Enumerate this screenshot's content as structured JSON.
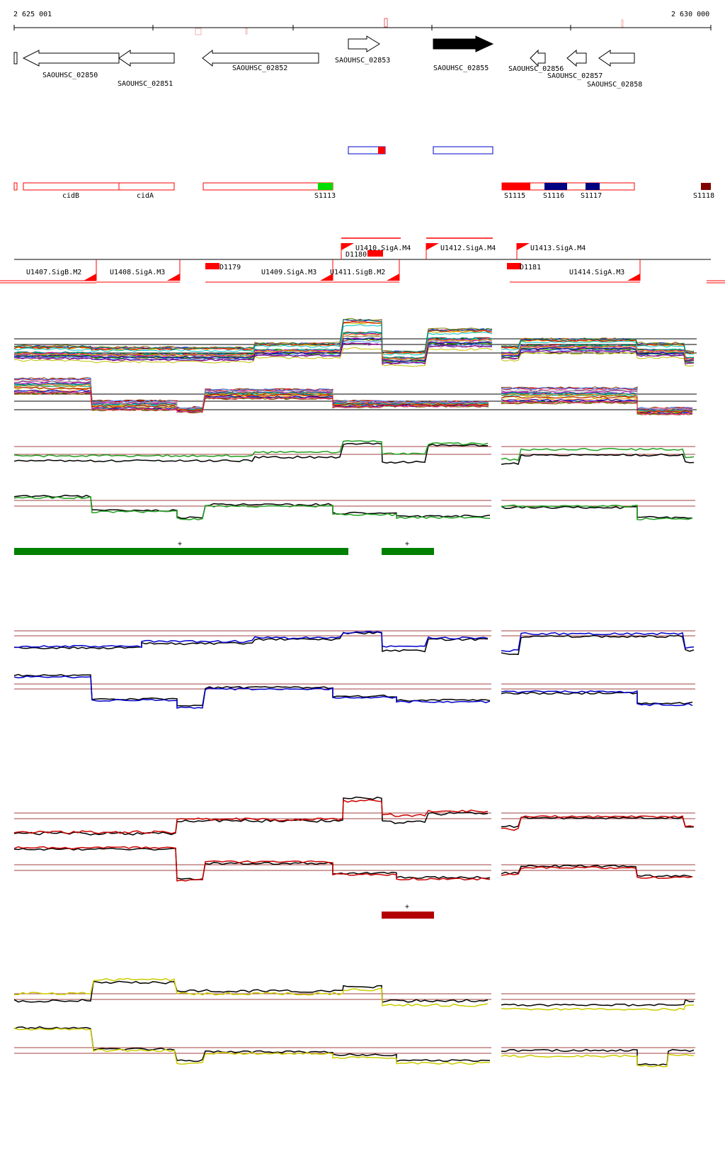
{
  "coords": {
    "start": "2 625 001",
    "end": "2 630 000"
  },
  "genes": [
    {
      "label": "SAOUHSC_02850",
      "strand": "-",
      "filled": false
    },
    {
      "label": "SAOUHSC_02851",
      "strand": "-",
      "filled": false
    },
    {
      "label": "SAOUHSC_02852",
      "strand": "-",
      "filled": false
    },
    {
      "label": "SAOUHSC_02853",
      "strand": "+",
      "filled": false
    },
    {
      "label": "SAOUHSC_02855",
      "strand": "+",
      "filled": true
    },
    {
      "label": "SAOUHSC_02856",
      "strand": "-",
      "filled": false
    },
    {
      "label": "SAOUHSC_02857",
      "strand": "-",
      "filled": false
    },
    {
      "label": "SAOUHSC_02858",
      "strand": "-",
      "filled": false
    }
  ],
  "features": {
    "cidB": "cidB",
    "cidA": "cidA",
    "s1113": "S1113",
    "s1115": "S1115",
    "s1116": "S1116",
    "s1117": "S1117",
    "s1118": "S1118"
  },
  "promoters_up": [
    "U1410.SigA.M4",
    "U1412.SigA.M4",
    "U1413.SigA.M4"
  ],
  "promoters_down": [
    "U1407.SigB.M2",
    "U1408.SigA.M3",
    "U1409.SigA.M3",
    "U1411.SigB.M2",
    "U1414.SigA.M3"
  ],
  "segments": [
    "D1179",
    "D1180",
    "D1181"
  ],
  "markers": {
    "plus": "+"
  },
  "colors": {
    "bg": "#ffffff",
    "gene_red": "#ff0000",
    "bright_green": "#00dd00",
    "navy": "#000080",
    "maroon": "#800000",
    "track_green": "#008000",
    "track_blue": "#0000cc",
    "track_red": "#cc0000",
    "track_yellow": "#cccc00",
    "dark_green_bar": "#008000",
    "dark_red_bar": "#b30000"
  }
}
